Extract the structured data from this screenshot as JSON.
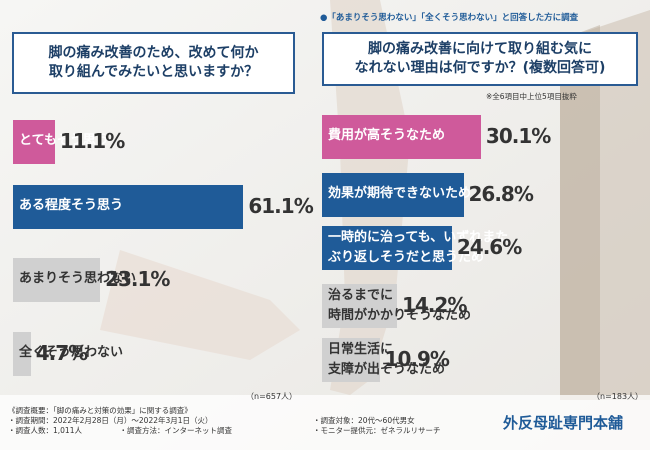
{
  "colors": {
    "navy": "#1f5b98",
    "pink": "#cf5a9b",
    "gray": "#d0d0d0",
    "border": "#2a5b93"
  },
  "left": {
    "question": "脚の痛み改善のため、改めて何か\n取り組んでみたいと思いますか？",
    "n": "（n=657人）"
  },
  "right": {
    "banner": "●「あまりそう思わない」「全くそう思わない」と回答した方に調査",
    "question": "脚の痛み改善に向けて取り組む気に\nなれない理由は何ですか？(複数回答可)",
    "note": "※全6項目中上位5項目抜粋",
    "n": "（n=183人）"
  },
  "chart_data": [
    {
      "type": "bar",
      "title": "脚の痛み改善のため、改めて何か取り組んでみたいと思いますか？",
      "unit": "%",
      "categories": [
        "とてもそう思う",
        "ある程度そう思う",
        "あまりそう思わない",
        "全くそう思わない"
      ],
      "values": [
        11.1,
        61.1,
        23.1,
        4.7
      ],
      "value_labels": [
        "11.1%",
        "61.1%",
        "23.1%",
        "4.7%"
      ]
    },
    {
      "type": "bar",
      "title": "脚の痛み改善に向けて取り組む気になれない理由は何ですか？(複数回答可)",
      "unit": "%",
      "categories": [
        "費用が高そうなため",
        "効果が期待できないため",
        "一時的に治っても、いずれまた\nぶり返しそうだと思うため",
        "治るまでに\n時間がかかりそうなため",
        "日常生活に\n支障が出そうなため"
      ],
      "values": [
        30.1,
        26.8,
        24.6,
        14.2,
        10.9
      ],
      "value_labels": [
        "30.1%",
        "26.8%",
        "24.6%",
        "14.2%",
        "10.9%"
      ]
    }
  ],
  "footer": {
    "lines": [
      "《調査概要：「脚の痛みと対策の効果」に関する調査》",
      "・調査期間：2022年2月28日（月）～2022年3月1日（火）",
      "・調査人数：1,011人　　　　　・調査方法：インターネット調査"
    ],
    "lines_right": [
      "・調査対象：20代～60代男女",
      "・モニター提供元：ゼネラルリサーチ"
    ],
    "brand": "外反母趾専門本舗"
  }
}
